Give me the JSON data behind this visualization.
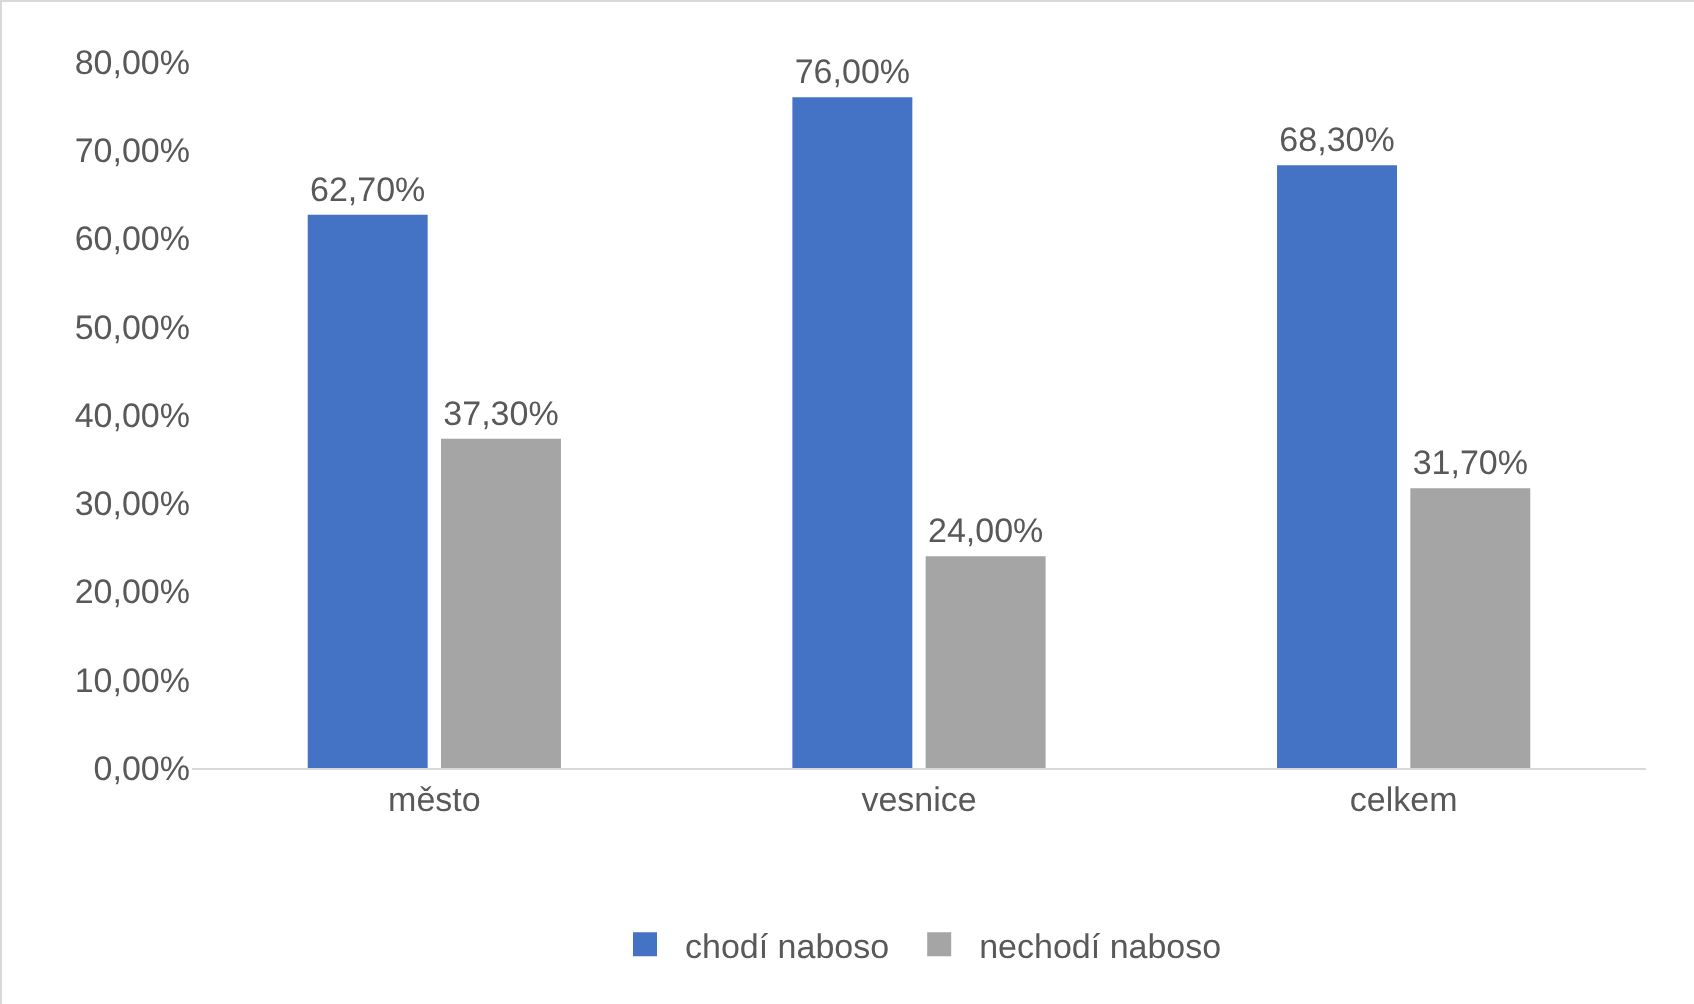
{
  "chart_data": {
    "type": "bar",
    "categories": [
      "město",
      "vesnice",
      "celkem"
    ],
    "series": [
      {
        "name": "chodí naboso",
        "color": "#4472c4",
        "values": [
          62.7,
          76,
          68.3
        ],
        "value_labels": [
          "62,70%",
          "76,00%",
          "68,30%"
        ]
      },
      {
        "name": "nechodí naboso",
        "color": "#a5a5a5",
        "values": [
          37.3,
          24,
          31.7
        ],
        "value_labels": [
          "37,30%",
          "24,00%",
          "31,70%"
        ]
      }
    ],
    "ylim": [
      0,
      80
    ],
    "yticks": [
      {
        "value": 0,
        "label": "0,00%"
      },
      {
        "value": 10,
        "label": "10,00%"
      },
      {
        "value": 20,
        "label": "20,00%"
      },
      {
        "value": 30,
        "label": "30,00%"
      },
      {
        "value": 40,
        "label": "40,00%"
      },
      {
        "value": 50,
        "label": "50,00%"
      },
      {
        "value": 60,
        "label": "60,00%"
      },
      {
        "value": 70,
        "label": "70,00%"
      },
      {
        "value": 80,
        "label": "80,00%"
      }
    ],
    "grid": false,
    "legend": "bottom"
  }
}
